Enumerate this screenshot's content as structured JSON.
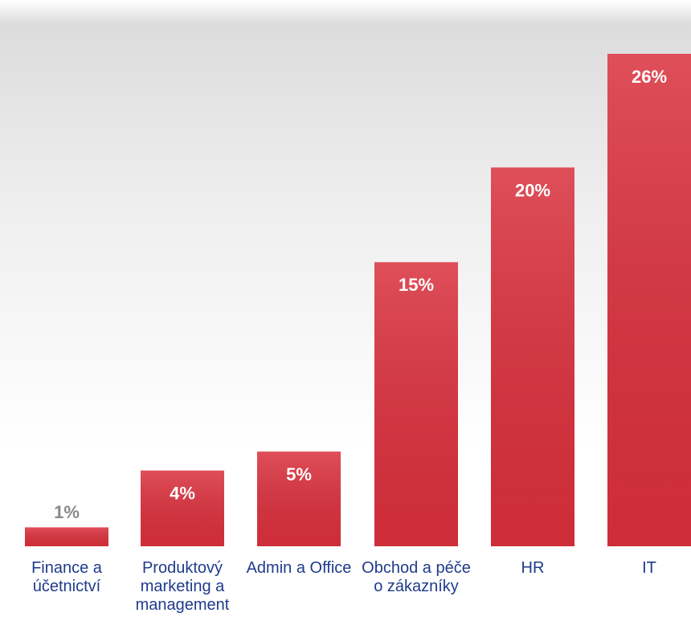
{
  "chart_data": {
    "type": "bar",
    "categories": [
      "Finance a účetnictví",
      "Produktový marketing a management",
      "Admin a Office",
      "Obchod a péče o zákazníky",
      "HR",
      "IT"
    ],
    "values": [
      1,
      4,
      5,
      15,
      20,
      26
    ],
    "value_labels": [
      "1%",
      "4%",
      "5%",
      "15%",
      "20%",
      "26%"
    ],
    "color": "#d9303c"
  }
}
